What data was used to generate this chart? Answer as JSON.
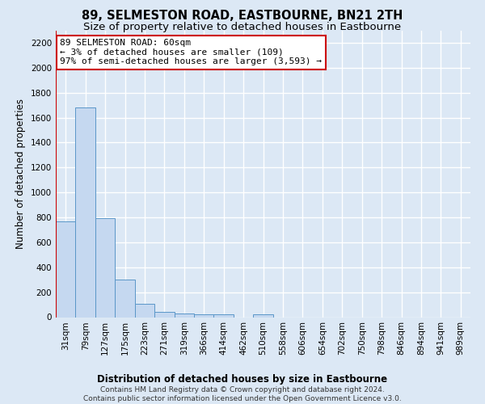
{
  "title": "89, SELMESTON ROAD, EASTBOURNE, BN21 2TH",
  "subtitle": "Size of property relative to detached houses in Eastbourne",
  "xlabel": "Distribution of detached houses by size in Eastbourne",
  "ylabel": "Number of detached properties",
  "categories": [
    "31sqm",
    "79sqm",
    "127sqm",
    "175sqm",
    "223sqm",
    "271sqm",
    "319sqm",
    "366sqm",
    "414sqm",
    "462sqm",
    "510sqm",
    "558sqm",
    "606sqm",
    "654sqm",
    "702sqm",
    "750sqm",
    "798sqm",
    "846sqm",
    "894sqm",
    "941sqm",
    "989sqm"
  ],
  "values": [
    770,
    1680,
    795,
    300,
    110,
    42,
    30,
    25,
    22,
    0,
    22,
    0,
    0,
    0,
    0,
    0,
    0,
    0,
    0,
    0,
    0
  ],
  "bar_color": "#c5d8f0",
  "bar_edge_color": "#5a96c8",
  "annotation_text": "89 SELMESTON ROAD: 60sqm\n← 3% of detached houses are smaller (109)\n97% of semi-detached houses are larger (3,593) →",
  "annotation_box_color": "#ffffff",
  "annotation_box_edge_color": "#cc0000",
  "vline_color": "#cc0000",
  "ylim": [
    0,
    2300
  ],
  "yticks": [
    0,
    200,
    400,
    600,
    800,
    1000,
    1200,
    1400,
    1600,
    1800,
    2000,
    2200
  ],
  "footer_text": "Contains HM Land Registry data © Crown copyright and database right 2024.\nContains public sector information licensed under the Open Government Licence v3.0.",
  "bg_color": "#dce8f5",
  "plot_bg_color": "#dce8f5",
  "grid_color": "#ffffff",
  "title_fontsize": 10.5,
  "subtitle_fontsize": 9.5,
  "axis_label_fontsize": 8.5,
  "tick_fontsize": 7.5,
  "annotation_fontsize": 8,
  "footer_fontsize": 6.5
}
